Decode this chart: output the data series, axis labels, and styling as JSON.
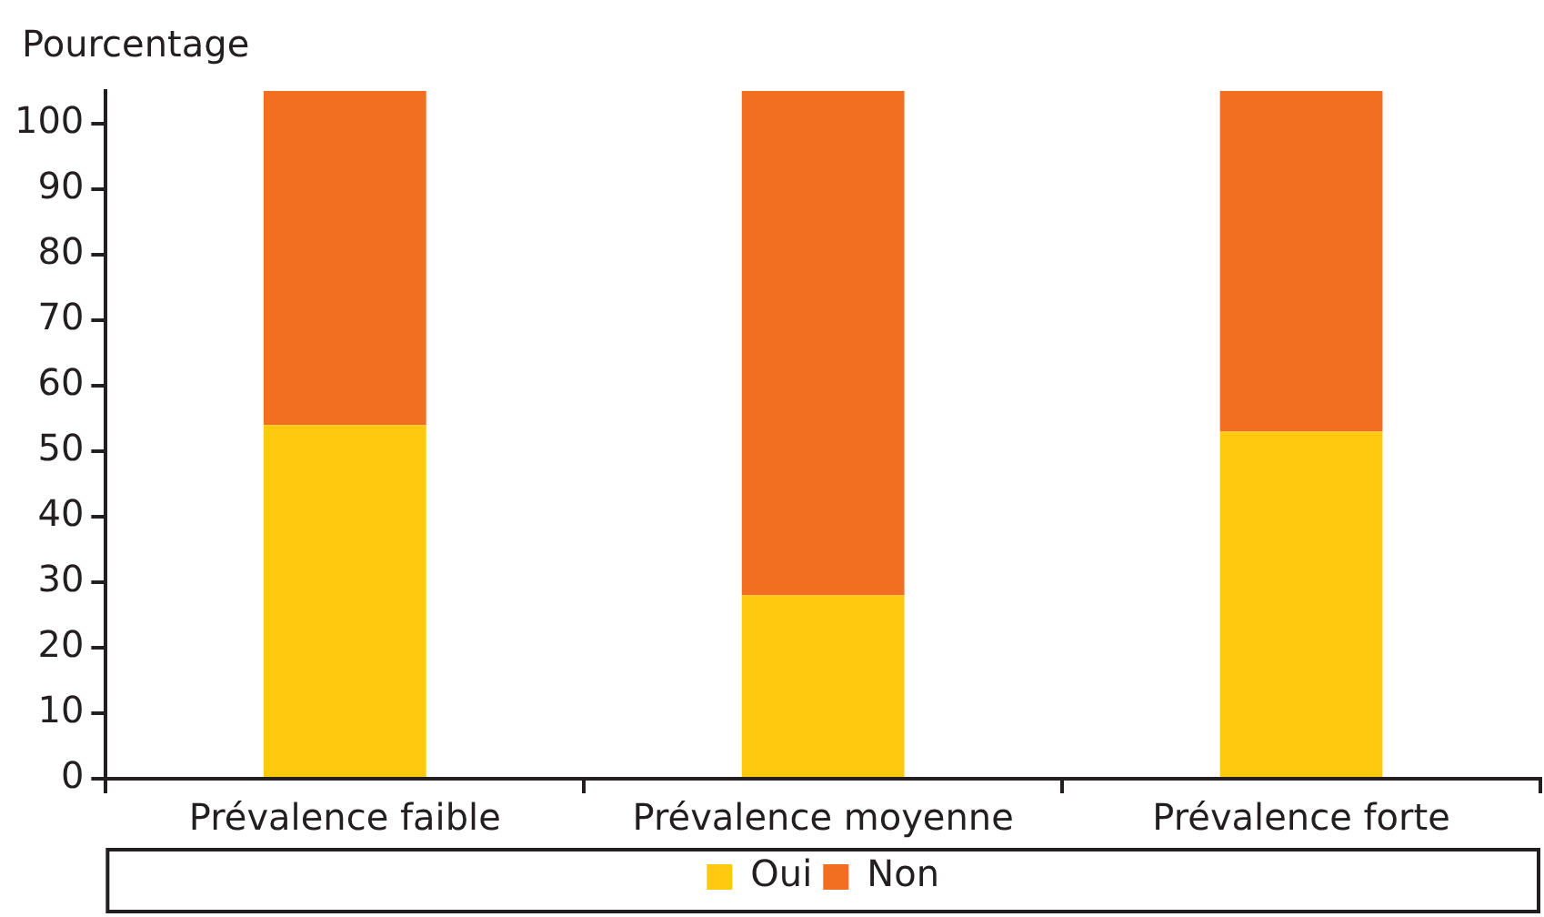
{
  "chart_data": {
    "type": "bar",
    "ylabel": "Pourcentage",
    "categories": [
      "Prévalence faible",
      "Prévalence moyenne",
      "Prévalence forte"
    ],
    "stacked": true,
    "series": [
      {
        "name": "Oui",
        "color": "#fec90e",
        "values": [
          54,
          28,
          53
        ]
      },
      {
        "name": "Non",
        "color": "#f26f22",
        "values": [
          51,
          77,
          52
        ]
      }
    ],
    "ylim": [
      0,
      105
    ],
    "yticks": [
      0,
      10,
      20,
      30,
      40,
      50,
      60,
      70,
      80,
      90,
      100
    ],
    "legend": "bottom"
  }
}
